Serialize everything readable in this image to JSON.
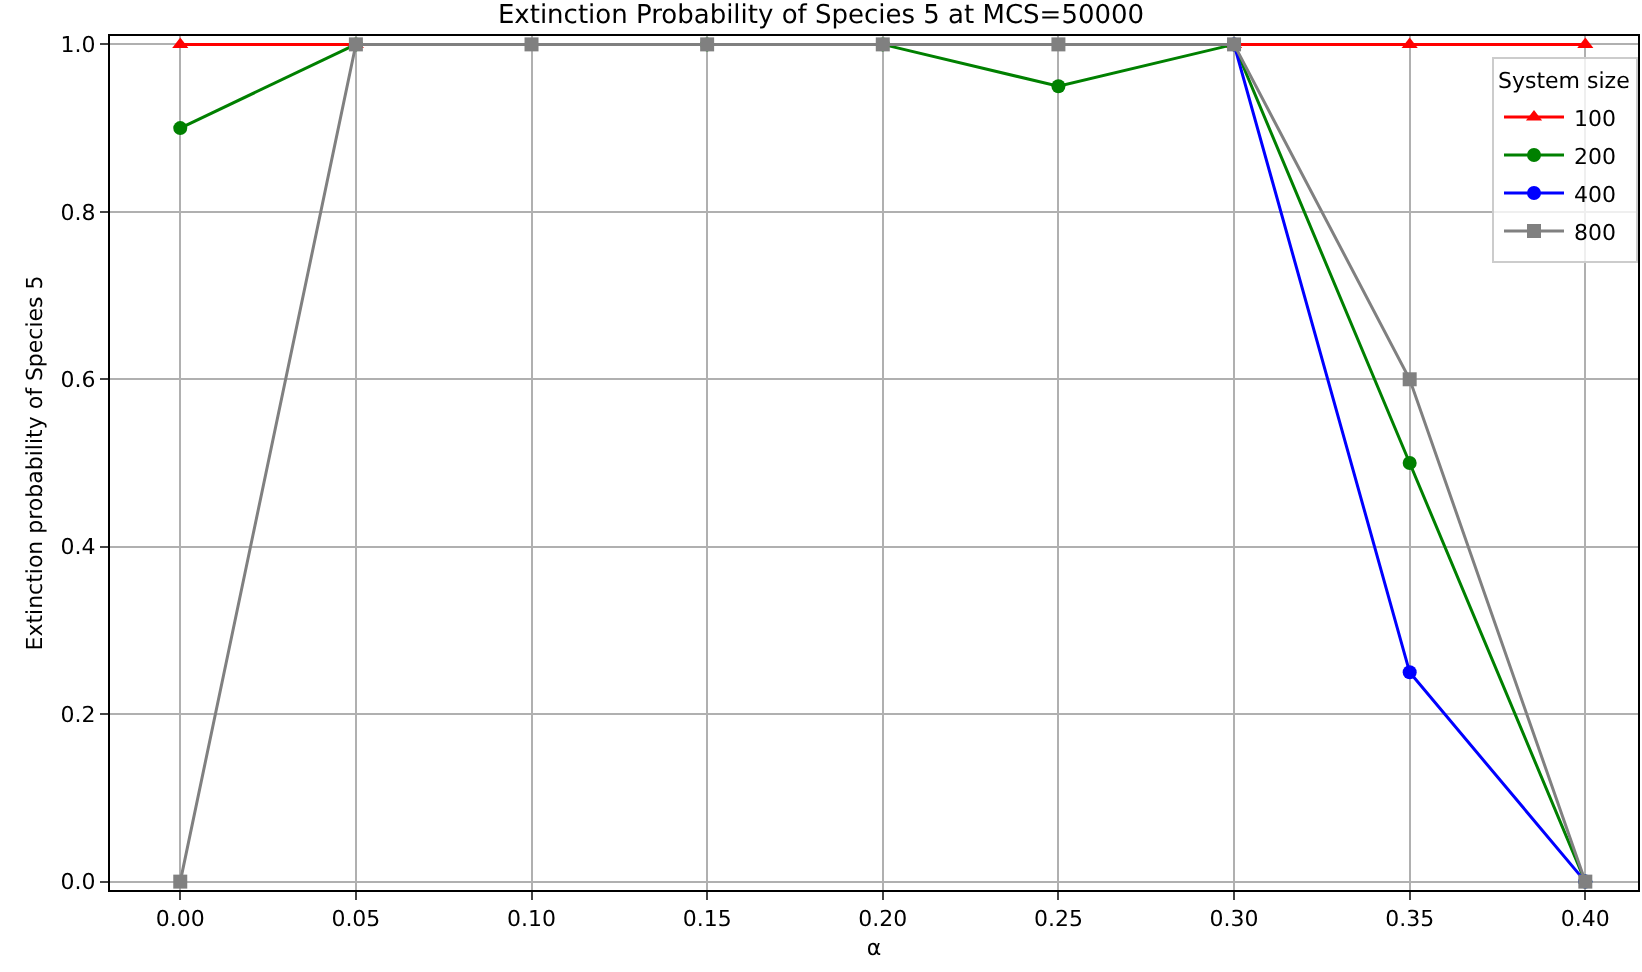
{
  "chart_data": {
    "type": "line",
    "title": "Extinction Probability of Species 5 at MCS=50000",
    "xlabel": "α",
    "ylabel": "Extinction probability of Species 5",
    "legend_title": "System size",
    "x": [
      0,
      0.05,
      0.1,
      0.15,
      0.2,
      0.25,
      0.3,
      0.35,
      0.4
    ],
    "series": [
      {
        "name": "100",
        "color": "#ff0000",
        "marker": "triangle",
        "values": [
          1,
          1,
          null,
          null,
          null,
          null,
          1,
          1,
          1
        ]
      },
      {
        "name": "200",
        "color": "#008000",
        "marker": "circle",
        "values": [
          0.9,
          1,
          null,
          1,
          1,
          0.95,
          1,
          0.5,
          0
        ]
      },
      {
        "name": "400",
        "color": "#0000ff",
        "marker": "circle",
        "values": [
          null,
          null,
          null,
          null,
          null,
          null,
          1,
          0.25,
          0
        ]
      },
      {
        "name": "800",
        "color": "#808080",
        "marker": "square",
        "values": [
          0,
          1,
          1,
          1,
          1,
          1,
          1,
          0.6,
          0
        ]
      }
    ],
    "xlim": [
      -0.02,
      0.415
    ],
    "xticks": [
      {
        "value": 0,
        "label": "0.00"
      },
      {
        "value": 0.05,
        "label": "0.05"
      },
      {
        "value": 0.1,
        "label": "0.10"
      },
      {
        "value": 0.15,
        "label": "0.15"
      },
      {
        "value": 0.2,
        "label": "0.20"
      },
      {
        "value": 0.25,
        "label": "0.25"
      },
      {
        "value": 0.3,
        "label": "0.30"
      },
      {
        "value": 0.35,
        "label": "0.35"
      },
      {
        "value": 0.4,
        "label": "0.40"
      }
    ],
    "ylim": [
      -0.01,
      1.01
    ],
    "yticks": [
      {
        "value": 0,
        "label": "0.0"
      },
      {
        "value": 0.2,
        "label": "0.2"
      },
      {
        "value": 0.4,
        "label": "0.4"
      },
      {
        "value": 0.6,
        "label": "0.6"
      },
      {
        "value": 0.8,
        "label": "0.8"
      },
      {
        "value": 1,
        "label": "1.0"
      }
    ],
    "grid": true,
    "legend": "top right",
    "line_style": "solid"
  }
}
